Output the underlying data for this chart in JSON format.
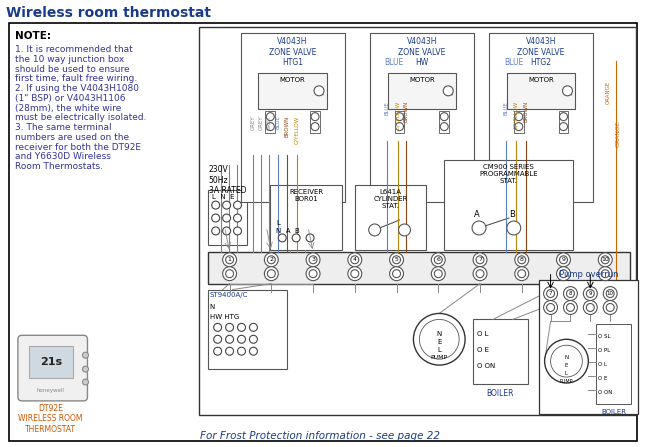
{
  "title": "Wireless room thermostat",
  "title_color": "#1a3a8c",
  "bg": "#ffffff",
  "text_color": "#1a3a8c",
  "note_bold": "NOTE:",
  "note_lines": [
    "1. It is recommended that",
    "the 10 way junction box",
    "should be used to ensure",
    "first time, fault free wiring.",
    "2. If using the V4043H1080",
    "(1\" BSP) or V4043H1106",
    "(28mm), the white wire",
    "must be electrically isolated.",
    "3. The same terminal",
    "numbers are used on the",
    "receiver for both the DT92E",
    "and Y6630D Wireless",
    "Room Thermostats."
  ],
  "zv_labels": [
    "V4043H\nZONE VALVE\nHTG1",
    "V4043H\nZONE VALVE\nHW",
    "V4043H\nZONE VALVE\nHTG2"
  ],
  "frost_text": "For Frost Protection information - see page 22",
  "pump_overrun": "Pump overrun",
  "dt92e": "DT92E\nWIRELESS ROOM\nTHERMOSTAT",
  "power": "230V\n50Hz\n3A RATED",
  "lne": "L  N  E",
  "st9400": "ST9400A/C",
  "hw_htg": "HW HTG",
  "boiler": "BOILER",
  "receiver": "RECEIVER\nBOR01",
  "l641a": "L641A\nCYLINDER\nSTAT.",
  "cm900": "CM900 SERIES\nPROGRAMMABLE\nSTAT.",
  "grey": "#808080",
  "blue": "#5b7fc4",
  "brown": "#8b4513",
  "gyellow": "#b8860b",
  "orange": "#cc6600",
  "line_gray": "#888888"
}
